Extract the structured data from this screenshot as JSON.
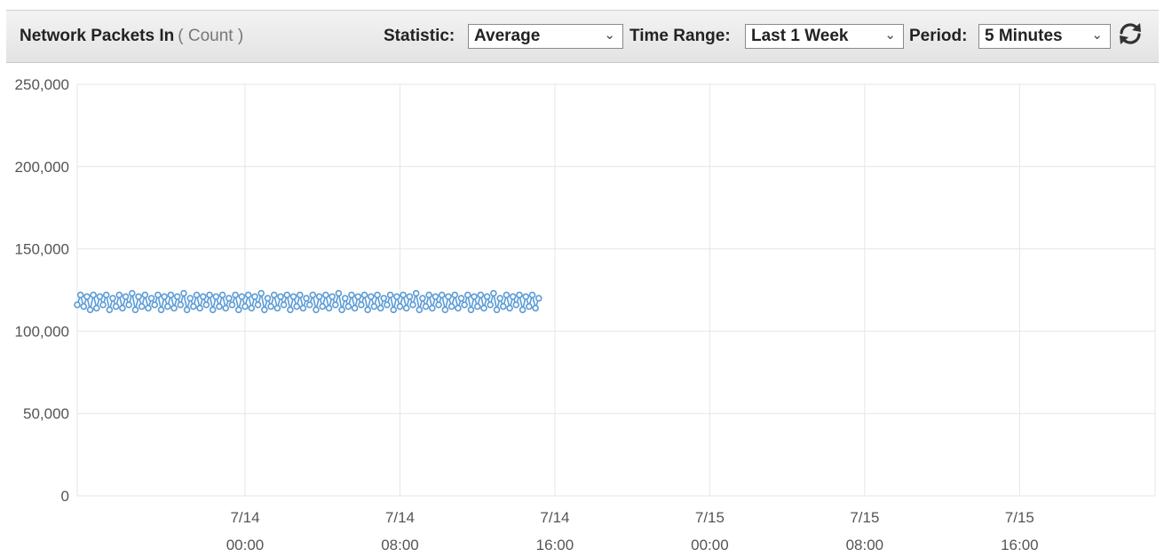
{
  "widget": {
    "title": "Network Packets In",
    "unit": "( Count )",
    "statistic_label": "Statistic:",
    "statistic_value": "Average",
    "time_range_label": "Time Range:",
    "time_range_value": "Last 1 Week",
    "period_label": "Period:",
    "period_value": "5 Minutes",
    "refresh_icon": "refresh-icon"
  },
  "colors": {
    "series": "#5b9bd5",
    "grid": "#e6e6e6"
  },
  "chart_data": {
    "type": "line",
    "ylim": [
      0,
      250000
    ],
    "y_ticks": [
      {
        "value": 0,
        "label": "0"
      },
      {
        "value": 50000,
        "label": "50,000"
      },
      {
        "value": 100000,
        "label": "100,000"
      },
      {
        "value": 150000,
        "label": "150,000"
      },
      {
        "value": 200000,
        "label": "200,000"
      },
      {
        "value": 250000,
        "label": "250,000"
      }
    ],
    "x_range": [
      "07-13 15:20",
      "07-15 23:00"
    ],
    "x_ticks": [
      {
        "date": "7/14",
        "time": "00:00"
      },
      {
        "date": "7/14",
        "time": "08:00"
      },
      {
        "date": "7/14",
        "time": "16:00"
      },
      {
        "date": "7/15",
        "time": "00:00"
      },
      {
        "date": "7/15",
        "time": "08:00"
      },
      {
        "date": "7/15",
        "time": "16:00"
      }
    ],
    "points": [
      [
        "07-13 15:20",
        116000
      ],
      [
        "07-13 15:30",
        122000
      ],
      [
        "07-13 15:40",
        115000
      ],
      [
        "07-13 15:50",
        121000
      ],
      [
        "07-13 16:00",
        113000
      ],
      [
        "07-13 16:10",
        122000
      ],
      [
        "07-13 16:20",
        114000
      ],
      [
        "07-13 16:30",
        121000
      ],
      [
        "07-13 16:40",
        116000
      ],
      [
        "07-13 16:50",
        122000
      ],
      [
        "07-13 17:00",
        113000
      ],
      [
        "07-13 17:10",
        120000
      ],
      [
        "07-13 17:20",
        115000
      ],
      [
        "07-13 17:30",
        122000
      ],
      [
        "07-13 17:40",
        114000
      ],
      [
        "07-13 17:50",
        121000
      ],
      [
        "07-13 18:00",
        116000
      ],
      [
        "07-13 18:10",
        123000
      ],
      [
        "07-13 18:20",
        113000
      ],
      [
        "07-13 18:30",
        121000
      ],
      [
        "07-13 18:40",
        115000
      ],
      [
        "07-13 18:50",
        122000
      ],
      [
        "07-13 19:00",
        114000
      ],
      [
        "07-13 19:10",
        120000
      ],
      [
        "07-13 19:20",
        116000
      ],
      [
        "07-13 19:30",
        122000
      ],
      [
        "07-13 19:40",
        113000
      ],
      [
        "07-13 19:50",
        121000
      ],
      [
        "07-13 20:00",
        115000
      ],
      [
        "07-13 20:10",
        122000
      ],
      [
        "07-13 20:20",
        114000
      ],
      [
        "07-13 20:30",
        121000
      ],
      [
        "07-13 20:40",
        116000
      ],
      [
        "07-13 20:50",
        123000
      ],
      [
        "07-13 21:00",
        113000
      ],
      [
        "07-13 21:10",
        120000
      ],
      [
        "07-13 21:20",
        115000
      ],
      [
        "07-13 21:30",
        122000
      ],
      [
        "07-13 21:40",
        114000
      ],
      [
        "07-13 21:50",
        121000
      ],
      [
        "07-13 22:00",
        116000
      ],
      [
        "07-13 22:10",
        122000
      ],
      [
        "07-13 22:20",
        113000
      ],
      [
        "07-13 22:30",
        121000
      ],
      [
        "07-13 22:40",
        115000
      ],
      [
        "07-13 22:50",
        122000
      ],
      [
        "07-13 23:00",
        114000
      ],
      [
        "07-13 23:10",
        120000
      ],
      [
        "07-13 23:20",
        116000
      ],
      [
        "07-13 23:30",
        122000
      ],
      [
        "07-13 23:40",
        113000
      ],
      [
        "07-13 23:50",
        121000
      ],
      [
        "07-14 00:00",
        115000
      ],
      [
        "07-14 00:10",
        122000
      ],
      [
        "07-14 00:20",
        114000
      ],
      [
        "07-14 00:30",
        121000
      ],
      [
        "07-14 00:40",
        116000
      ],
      [
        "07-14 00:50",
        123000
      ],
      [
        "07-14 01:00",
        113000
      ],
      [
        "07-14 01:10",
        120000
      ],
      [
        "07-14 01:20",
        115000
      ],
      [
        "07-14 01:30",
        122000
      ],
      [
        "07-14 01:40",
        114000
      ],
      [
        "07-14 01:50",
        121000
      ],
      [
        "07-14 02:00",
        116000
      ],
      [
        "07-14 02:10",
        122000
      ],
      [
        "07-14 02:20",
        113000
      ],
      [
        "07-14 02:30",
        121000
      ],
      [
        "07-14 02:40",
        115000
      ],
      [
        "07-14 02:50",
        122000
      ],
      [
        "07-14 03:00",
        114000
      ],
      [
        "07-14 03:10",
        120000
      ],
      [
        "07-14 03:20",
        116000
      ],
      [
        "07-14 03:30",
        122000
      ],
      [
        "07-14 03:40",
        113000
      ],
      [
        "07-14 03:50",
        121000
      ],
      [
        "07-14 04:00",
        115000
      ],
      [
        "07-14 04:10",
        122000
      ],
      [
        "07-14 04:20",
        114000
      ],
      [
        "07-14 04:30",
        121000
      ],
      [
        "07-14 04:40",
        116000
      ],
      [
        "07-14 04:50",
        123000
      ],
      [
        "07-14 05:00",
        113000
      ],
      [
        "07-14 05:10",
        120000
      ],
      [
        "07-14 05:20",
        115000
      ],
      [
        "07-14 05:30",
        122000
      ],
      [
        "07-14 05:40",
        114000
      ],
      [
        "07-14 05:50",
        121000
      ],
      [
        "07-14 06:00",
        116000
      ],
      [
        "07-14 06:10",
        122000
      ],
      [
        "07-14 06:20",
        113000
      ],
      [
        "07-14 06:30",
        121000
      ],
      [
        "07-14 06:40",
        115000
      ],
      [
        "07-14 06:50",
        122000
      ],
      [
        "07-14 07:00",
        114000
      ],
      [
        "07-14 07:10",
        120000
      ],
      [
        "07-14 07:20",
        116000
      ],
      [
        "07-14 07:30",
        122000
      ],
      [
        "07-14 07:40",
        113000
      ],
      [
        "07-14 07:50",
        121000
      ],
      [
        "07-14 08:00",
        115000
      ],
      [
        "07-14 08:10",
        122000
      ],
      [
        "07-14 08:20",
        114000
      ],
      [
        "07-14 08:30",
        121000
      ],
      [
        "07-14 08:40",
        116000
      ],
      [
        "07-14 08:50",
        123000
      ],
      [
        "07-14 09:00",
        113000
      ],
      [
        "07-14 09:10",
        120000
      ],
      [
        "07-14 09:20",
        115000
      ],
      [
        "07-14 09:30",
        122000
      ],
      [
        "07-14 09:40",
        114000
      ],
      [
        "07-14 09:50",
        121000
      ],
      [
        "07-14 10:00",
        116000
      ],
      [
        "07-14 10:10",
        122000
      ],
      [
        "07-14 10:20",
        113000
      ],
      [
        "07-14 10:30",
        121000
      ],
      [
        "07-14 10:40",
        115000
      ],
      [
        "07-14 10:50",
        122000
      ],
      [
        "07-14 11:00",
        114000
      ],
      [
        "07-14 11:10",
        120000
      ],
      [
        "07-14 11:20",
        116000
      ],
      [
        "07-14 11:30",
        122000
      ],
      [
        "07-14 11:40",
        113000
      ],
      [
        "07-14 11:50",
        121000
      ],
      [
        "07-14 12:00",
        115000
      ],
      [
        "07-14 12:10",
        122000
      ],
      [
        "07-14 12:20",
        114000
      ],
      [
        "07-14 12:30",
        121000
      ],
      [
        "07-14 12:40",
        116000
      ],
      [
        "07-14 12:50",
        123000
      ],
      [
        "07-14 13:00",
        113000
      ],
      [
        "07-14 13:10",
        120000
      ],
      [
        "07-14 13:20",
        115000
      ],
      [
        "07-14 13:30",
        122000
      ],
      [
        "07-14 13:40",
        114000
      ],
      [
        "07-14 13:50",
        121000
      ],
      [
        "07-14 14:00",
        116000
      ],
      [
        "07-14 14:10",
        122000
      ],
      [
        "07-14 14:20",
        113000
      ],
      [
        "07-14 14:30",
        121000
      ],
      [
        "07-14 14:40",
        115000
      ],
      [
        "07-14 14:50",
        122000
      ],
      [
        "07-14 15:00",
        114000
      ],
      [
        "07-14 15:10",
        120000
      ]
    ]
  }
}
